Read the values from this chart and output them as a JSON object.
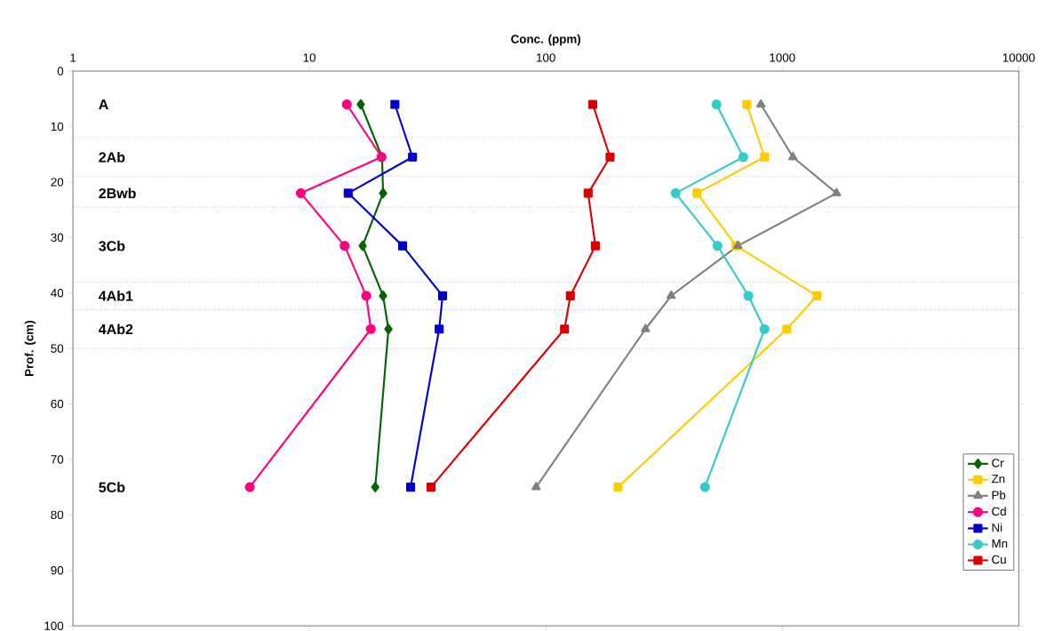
{
  "chart_data": {
    "type": "line",
    "xlabel": "Conc. (ppm)",
    "ylabel": "Prof. (cm)",
    "log": "x",
    "xlim": [
      1,
      10000
    ],
    "xticks": [
      1,
      10,
      100,
      1000,
      10000
    ],
    "ylim": [
      100,
      0
    ],
    "yticks": [
      0,
      10,
      20,
      30,
      40,
      50,
      60,
      70,
      80,
      90,
      100
    ],
    "legend": "bottom right",
    "grid": false,
    "series": [
      {
        "name": "Cr",
        "color": "#006400",
        "marker": "diamond",
        "x": [
          16.5,
          20.3,
          20.5,
          16.8,
          20.5,
          21.6,
          19.0
        ],
        "values": [
          6,
          15.5,
          22,
          31.5,
          40.5,
          46.5,
          75
        ]
      },
      {
        "name": "Zn",
        "color": "#ffcc00",
        "marker": "square",
        "x": [
          708,
          841,
          436,
          638,
          1403,
          1045,
          202
        ],
        "values": [
          6,
          15.5,
          22,
          31.5,
          40.5,
          46.5,
          75
        ]
      },
      {
        "name": "Pb",
        "color": "#808080",
        "marker": "triangle",
        "x": [
          812,
          1109,
          1696,
          649,
          339,
          264,
          91
        ],
        "values": [
          6,
          15.5,
          22,
          31.5,
          40.5,
          46.5,
          75
        ]
      },
      {
        "name": "Cd",
        "color": "#ff0080",
        "marker": "circle",
        "x": [
          14.4,
          20.2,
          9.2,
          14.1,
          17.4,
          18.2,
          5.6
        ],
        "values": [
          6,
          15.5,
          22,
          31.5,
          40.5,
          46.5,
          75
        ]
      },
      {
        "name": "Ni",
        "color": "#0000cc",
        "marker": "square",
        "x": [
          23,
          27.3,
          14.6,
          24.8,
          36.6,
          35.4,
          26.8
        ],
        "values": [
          6,
          15.5,
          22,
          31.5,
          40.5,
          46.5,
          75
        ]
      },
      {
        "name": "Mn",
        "color": "#33cccc",
        "marker": "circle",
        "x": [
          527,
          684,
          354,
          532,
          719,
          841,
          471
        ],
        "values": [
          6,
          15.5,
          22,
          31.5,
          40.5,
          46.5,
          75
        ]
      },
      {
        "name": "Cu",
        "color": "#dd0000",
        "marker": "square",
        "x": [
          158,
          187,
          151,
          162,
          127,
          120,
          32.7
        ],
        "values": [
          6,
          15.5,
          22,
          31.5,
          40.5,
          46.5,
          75
        ]
      }
    ],
    "ref_lines": [
      {
        "axis": "y",
        "value": 12,
        "line_style": "dotted"
      },
      {
        "axis": "y",
        "value": 19,
        "line_style": "dotted"
      },
      {
        "axis": "y",
        "value": 24.5,
        "line_style": "dotted"
      },
      {
        "axis": "y",
        "value": 38,
        "line_style": "dotted"
      },
      {
        "axis": "y",
        "value": 43,
        "line_style": "dotted"
      },
      {
        "axis": "y",
        "value": 50,
        "line_style": "dotted"
      }
    ],
    "annotations": [
      "A",
      "2Ab",
      "2Bwb",
      "3Cb",
      "4Ab1",
      "4Ab2",
      "5Cb"
    ]
  }
}
